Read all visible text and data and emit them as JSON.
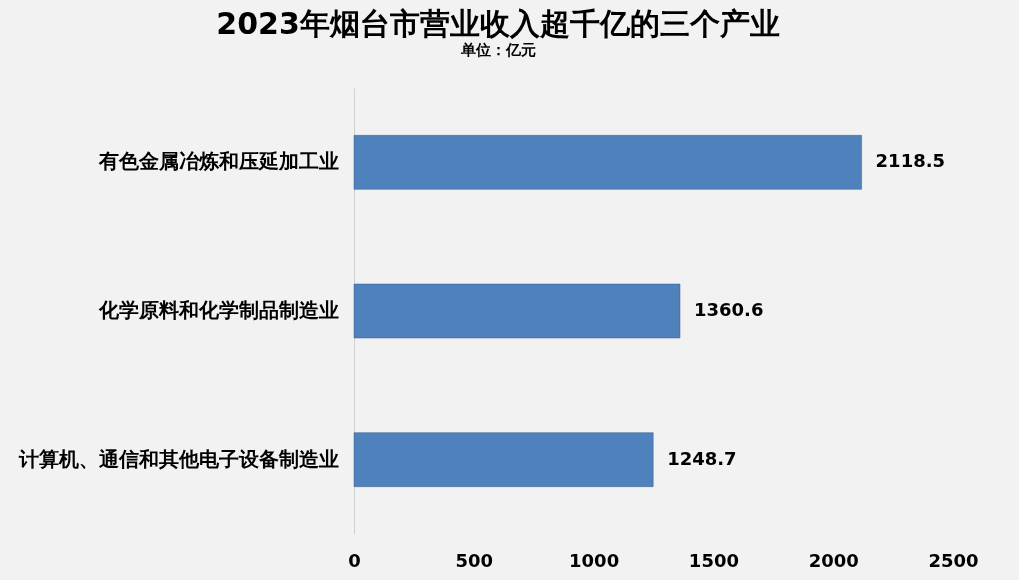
{
  "chart_data": {
    "type": "bar",
    "orientation": "horizontal",
    "title": "2023年烟台市营业收入超千亿的三个产业",
    "subtitle": "单位：亿元",
    "categories": [
      "有色金属冶炼和压延加工业",
      "化学原料和化学制品制造业",
      "计算机、通信和其他电子设备制造业"
    ],
    "values": [
      2118.5,
      1360.6,
      1248.7
    ],
    "color": "#4f81bd",
    "xlim": [
      0,
      2500
    ],
    "xticks": [
      0,
      500,
      1000,
      1500,
      2000,
      2500
    ],
    "data_labels": true,
    "grid": false
  }
}
